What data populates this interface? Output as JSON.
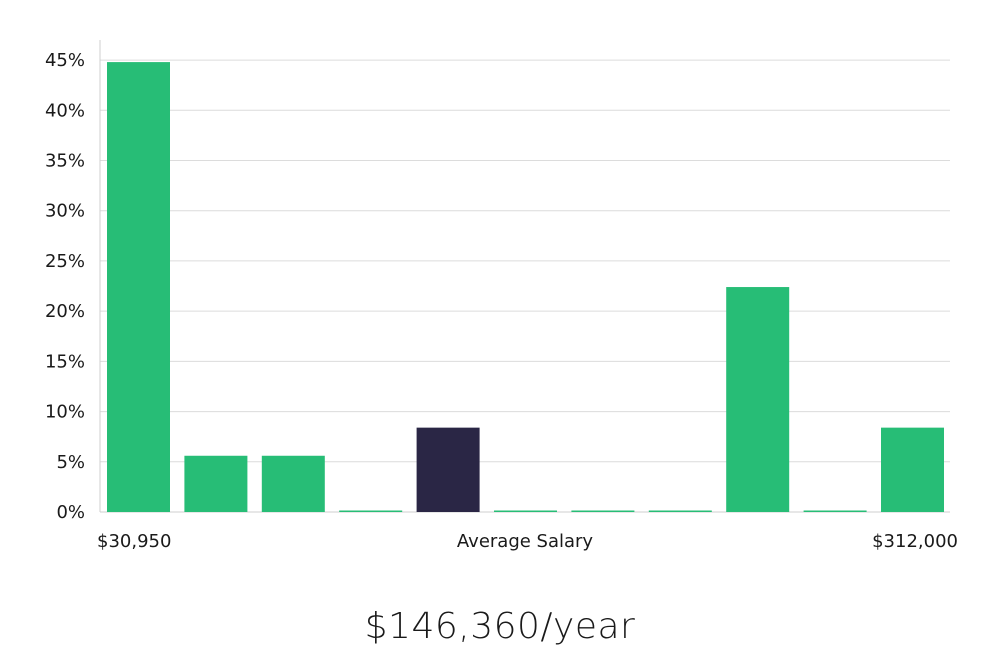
{
  "chart_data": {
    "type": "bar",
    "categories": [
      "1",
      "2",
      "3",
      "4",
      "5",
      "6",
      "7",
      "8",
      "9",
      "10",
      "11"
    ],
    "values": [
      44.8,
      5.6,
      5.6,
      0,
      8.4,
      0,
      0,
      0,
      22.4,
      0,
      8.4
    ],
    "highlight_index": 4,
    "ylim": [
      0,
      47
    ],
    "yticks": [
      0,
      5,
      10,
      15,
      20,
      25,
      30,
      35,
      40,
      45
    ],
    "ytick_suffix": "%",
    "grid": true,
    "x_labels": {
      "min": "$30,950",
      "center": "Average Salary",
      "max": "$312,000"
    },
    "colors": {
      "bar": "#27bd76",
      "highlight": "#2a2645",
      "grid": "#dcdcdc",
      "axis": "#cfcfcf"
    }
  },
  "footer": {
    "average_salary": "$146,360/year"
  }
}
